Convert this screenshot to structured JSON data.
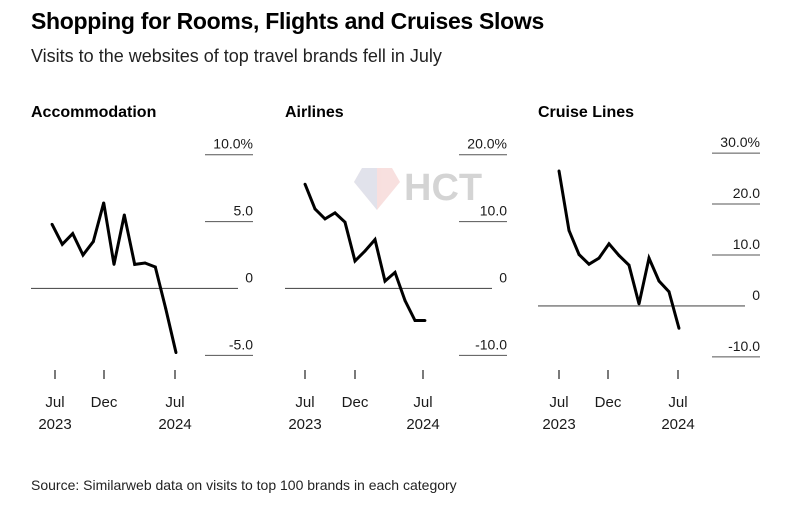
{
  "header": {
    "title": "Shopping for Rooms, Flights and Cruises Slows",
    "subtitle": "Visits to the websites of top travel brands fell in July"
  },
  "watermark": {
    "text": "HCT"
  },
  "footer": {
    "source": "Source: Similarweb data on visits to top 100 brands in each category"
  },
  "chart_data": [
    {
      "type": "line",
      "title": "Accommodation",
      "x": [
        "2023-07",
        "2023-08",
        "2023-09",
        "2023-10",
        "2023-11",
        "2023-12",
        "2024-01",
        "2024-02",
        "2024-03",
        "2024-04",
        "2024-05",
        "2024-06",
        "2024-07"
      ],
      "values": [
        4.8,
        3.3,
        4.1,
        2.5,
        3.5,
        6.4,
        1.8,
        5.5,
        1.8,
        1.9,
        1.6,
        -1.5,
        -4.8
      ],
      "ylim": [
        -5.5,
        10.5
      ],
      "yticks": [
        {
          "value": 10,
          "label": "10.0%"
        },
        {
          "value": 5,
          "label": "5.0"
        },
        {
          "value": 0,
          "label": "0"
        },
        {
          "value": -5,
          "label": "-5.0"
        }
      ],
      "xticks": [
        {
          "x": "2023-07",
          "label": "Jul",
          "sublabel": "2023"
        },
        {
          "x": "2023-12",
          "label": "Dec",
          "sublabel": ""
        },
        {
          "x": "2024-07",
          "label": "Jul",
          "sublabel": "2024"
        }
      ],
      "grid": false
    },
    {
      "type": "line",
      "title": "Airlines",
      "x": [
        "2023-07",
        "2023-08",
        "2023-09",
        "2023-10",
        "2023-11",
        "2023-12",
        "2024-01",
        "2024-02",
        "2024-03",
        "2024-04",
        "2024-05",
        "2024-06",
        "2024-07"
      ],
      "values": [
        15.6,
        11.9,
        10.4,
        11.3,
        9.9,
        4.1,
        5.6,
        7.3,
        1.1,
        2.4,
        -1.8,
        -4.8,
        -4.8
      ],
      "ylim": [
        -11,
        21
      ],
      "yticks": [
        {
          "value": 20,
          "label": "20.0%"
        },
        {
          "value": 10,
          "label": "10.0"
        },
        {
          "value": 0,
          "label": "0"
        },
        {
          "value": -10,
          "label": "-10.0"
        }
      ],
      "xticks": [
        {
          "x": "2023-07",
          "label": "Jul",
          "sublabel": "2023"
        },
        {
          "x": "2023-12",
          "label": "Dec",
          "sublabel": ""
        },
        {
          "x": "2024-07",
          "label": "Jul",
          "sublabel": "2024"
        }
      ],
      "grid": false
    },
    {
      "type": "line",
      "title": "Cruise Lines",
      "x": [
        "2023-07",
        "2023-08",
        "2023-09",
        "2023-10",
        "2023-11",
        "2023-12",
        "2024-01",
        "2024-02",
        "2024-03",
        "2024-04",
        "2024-05",
        "2024-06",
        "2024-07"
      ],
      "values": [
        26.5,
        14.8,
        10.1,
        8.2,
        9.4,
        12.2,
        9.9,
        8.0,
        0.4,
        9.4,
        4.9,
        2.8,
        -4.4
      ],
      "ylim": [
        -11,
        31
      ],
      "yticks": [
        {
          "value": 30,
          "label": "30.0%"
        },
        {
          "value": 20,
          "label": "20.0"
        },
        {
          "value": 10,
          "label": "10.0"
        },
        {
          "value": 0,
          "label": "0"
        },
        {
          "value": -10,
          "label": "-10.0"
        }
      ],
      "xticks": [
        {
          "x": "2023-07",
          "label": "Jul",
          "sublabel": "2023"
        },
        {
          "x": "2023-12",
          "label": "Dec",
          "sublabel": ""
        },
        {
          "x": "2024-07",
          "label": "Jul",
          "sublabel": "2024"
        }
      ],
      "grid": false
    }
  ],
  "colors": {
    "line": "#000000",
    "axis": "#555555",
    "text": "#1a1a1a"
  }
}
